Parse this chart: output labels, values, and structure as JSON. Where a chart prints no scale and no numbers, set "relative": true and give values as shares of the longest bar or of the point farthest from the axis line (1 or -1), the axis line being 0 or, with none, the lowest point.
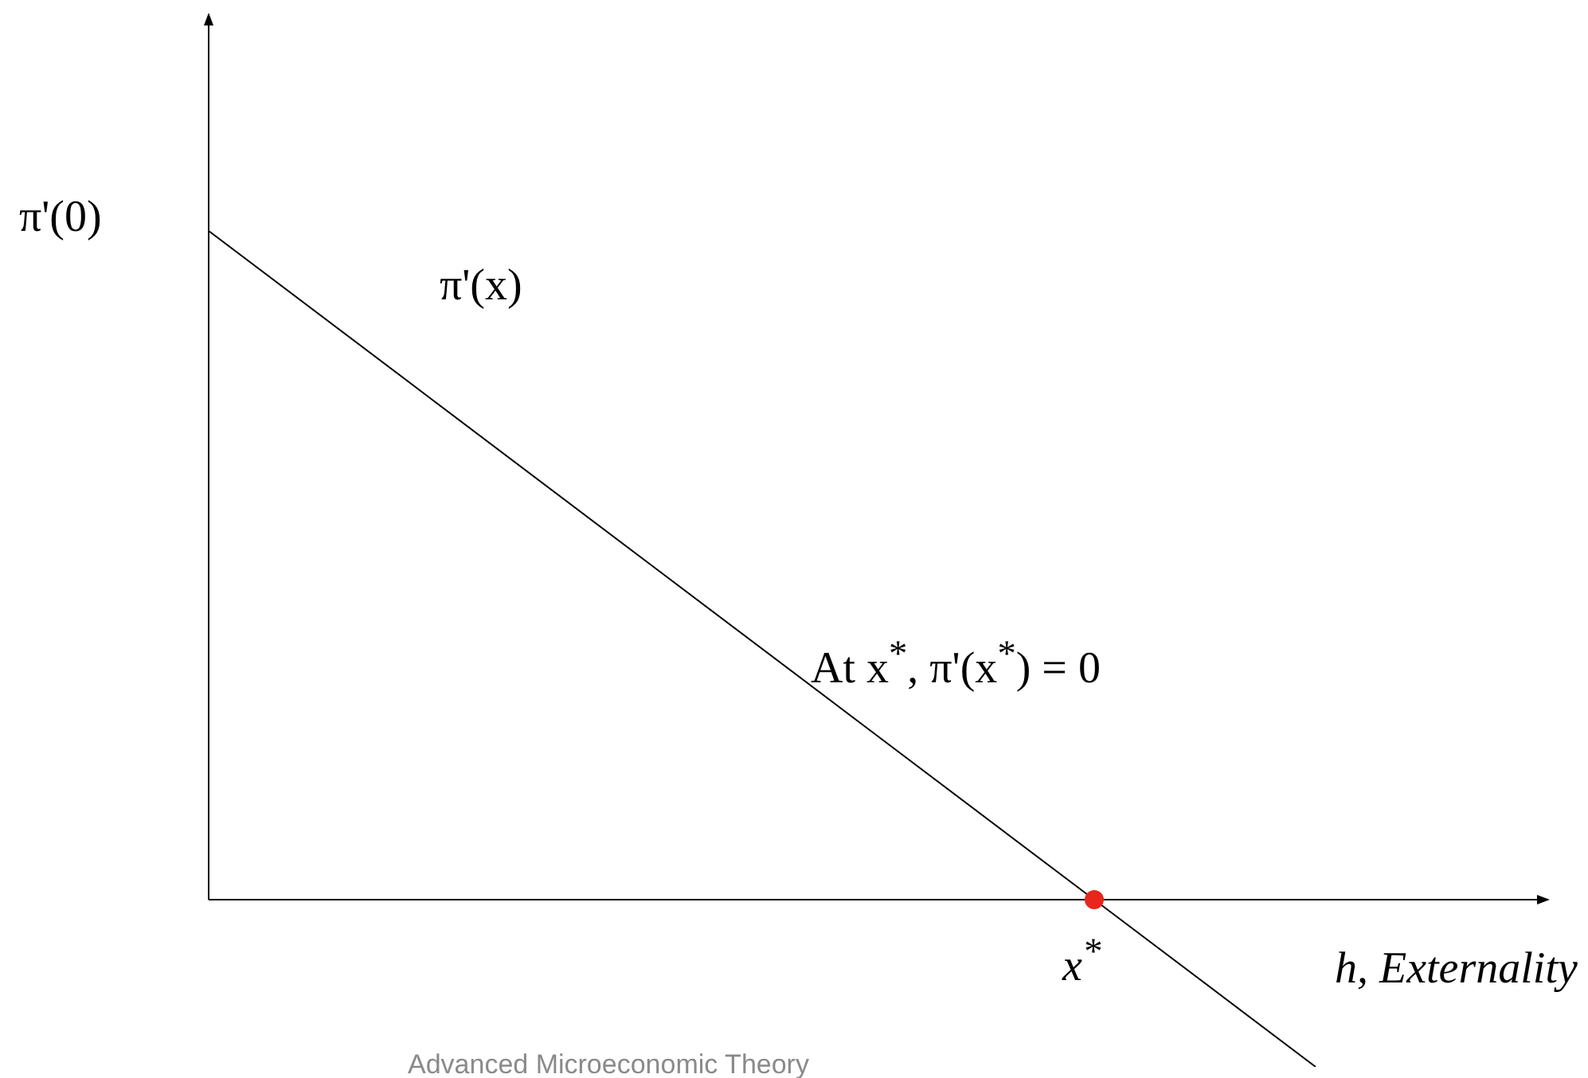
{
  "chart_data": {
    "type": "line",
    "relative": true,
    "xlabel": "h, Externality",
    "categories": [
      null,
      null,
      null,
      null,
      null,
      null
    ],
    "series": [
      {
        "color": "#000000",
        "values": [
          1,
          0.75,
          0.5,
          0.25,
          0,
          -0.25
        ],
        "marker": "none",
        "line_style": "solid"
      }
    ],
    "annotations": [
      "π'(0)",
      "π'(x)",
      "At x$^{*}$, π'(x$^{*}$) = 0",
      "x$^{*}$",
      "Advanced Microeconomic Theory"
    ],
    "legend": false
  }
}
